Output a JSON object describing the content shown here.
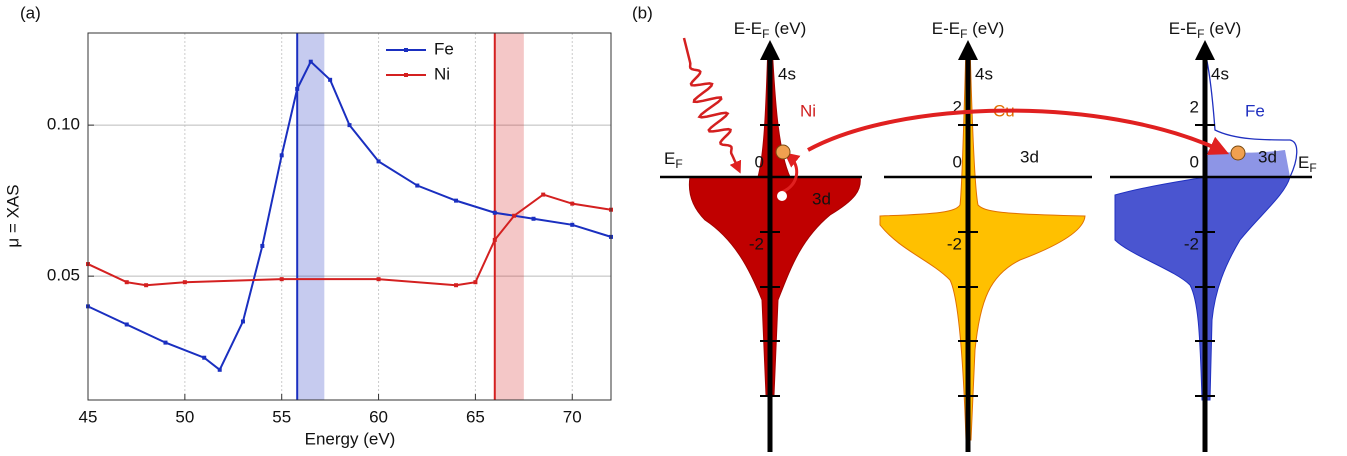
{
  "chart_data": {
    "type": "line",
    "panel_label": "(a)",
    "xlabel": "Energy (eV)",
    "ylabel": "μ = XAS",
    "xlim": [
      45,
      72
    ],
    "xticks": [
      45,
      50,
      55,
      60,
      65,
      70
    ],
    "ylim": [
      0.009,
      0.1305
    ],
    "yticks": [
      0.05,
      {
        "value": 0.1,
        "label": "0.10"
      }
    ],
    "grid": true,
    "legend": "upper right",
    "series": [
      {
        "name": "Fe",
        "color": "#1a2fc0",
        "x": [
          45,
          47,
          49,
          51,
          51.8,
          53,
          54,
          55,
          55.8,
          56.5,
          57.5,
          58.5,
          60,
          62,
          64,
          66,
          68,
          70,
          72
        ],
        "values": [
          0.04,
          0.034,
          0.028,
          0.023,
          0.019,
          0.035,
          0.06,
          0.09,
          0.112,
          0.121,
          0.115,
          0.1,
          0.088,
          0.08,
          0.075,
          0.071,
          0.069,
          0.067,
          0.063
        ]
      },
      {
        "name": "Ni",
        "color": "#d42020",
        "x": [
          45,
          47,
          48,
          50,
          55,
          60,
          64,
          65,
          66,
          67,
          68.5,
          70,
          72
        ],
        "values": [
          0.054,
          0.048,
          0.047,
          0.048,
          0.049,
          0.049,
          0.047,
          0.048,
          0.062,
          0.07,
          0.077,
          0.074,
          0.072
        ]
      }
    ],
    "highlights": [
      {
        "x": 55.8,
        "x2": 57.2,
        "color": "#1a2fc0"
      },
      {
        "x": 66,
        "x2": 67.5,
        "color": "#d42020"
      }
    ]
  },
  "diagram": {
    "panel_label": "(b)",
    "axis_label": {
      "main": "E-E",
      "sub": "F",
      "unit": " (eV)"
    },
    "fermi": {
      "main": "E",
      "sub": "F"
    },
    "orbital_top": "4s",
    "orbital_mid": "3d",
    "columns": [
      {
        "element": "Ni",
        "ticks": [
          0,
          -2
        ]
      },
      {
        "element": "Cu",
        "ticks": [
          2,
          0,
          -2
        ]
      },
      {
        "element": "Fe",
        "ticks": [
          2,
          0,
          -2
        ]
      }
    ]
  }
}
